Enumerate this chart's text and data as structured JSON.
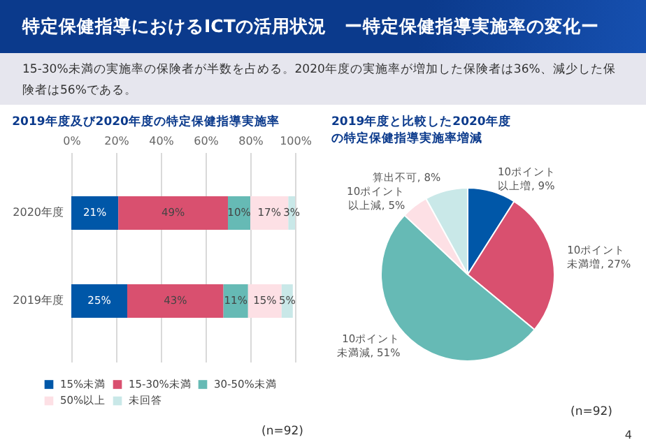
{
  "chart_data": [
    {
      "type": "other",
      "title": "特定保健指導におけるICTの活用状況　ー特定保健指導実施率の変化ー",
      "subtitle": "15-30%未満の実施率の保険者が半数を占める。2020年度の実施率が増加した保険者は36%、減少した保険者は56%である。",
      "annotations": [
        "4"
      ]
    },
    {
      "type": "bar",
      "title": "2019年度及び2020年度の特定保健指導実施率",
      "orientation": "horizontal",
      "stacked": true,
      "categories": [
        "2020年度",
        "2019年度"
      ],
      "series": [
        {
          "name": "15%未満",
          "color": "#0057a8",
          "values": [
            21,
            25
          ],
          "value_labels": [
            "21%",
            "25%"
          ]
        },
        {
          "name": "15-30%未満",
          "color": "#d9506f",
          "values": [
            49,
            43
          ],
          "value_labels": [
            "49%",
            "43%"
          ]
        },
        {
          "name": "30-50%未満",
          "color": "#66bab5",
          "values": [
            10,
            11
          ],
          "value_labels": [
            "10%",
            "11%"
          ]
        },
        {
          "name": "50%以上",
          "color": "#fde0e5",
          "values": [
            17,
            15
          ],
          "value_labels": [
            "17%",
            "15%"
          ]
        },
        {
          "name": "未回答",
          "color": "#c9e8e8",
          "values": [
            3,
            5
          ],
          "value_labels": [
            "3%",
            "5%"
          ]
        }
      ],
      "xlim": [
        0,
        100
      ],
      "xticks": [
        {
          "value": 0,
          "label": "0%"
        },
        {
          "value": 20,
          "label": "20%"
        },
        {
          "value": 40,
          "label": "40%"
        },
        {
          "value": 60,
          "label": "60%"
        },
        {
          "value": 80,
          "label": "80%"
        },
        {
          "value": 100,
          "label": "100%"
        }
      ],
      "grid": "x",
      "legend": "bottom",
      "annotations": [
        "(n=92)"
      ]
    },
    {
      "type": "pie",
      "title": "2019年度と比較した2020年度の特定保健指導実施率増減",
      "categories": [
        "10ポイント以上増",
        "10ポイント未満増",
        "10ポイント未満減",
        "10ポイント以上減",
        "算出不可"
      ],
      "values": [
        9,
        27,
        51,
        5,
        8
      ],
      "value_labels": [
        "9%",
        "27%",
        "51%",
        "5%",
        "8%"
      ],
      "colors": [
        "#0057a8",
        "#d9506f",
        "#66bab5",
        "#fde0e5",
        "#c9e8e8"
      ],
      "annotations": [
        "(n=92)"
      ]
    }
  ]
}
